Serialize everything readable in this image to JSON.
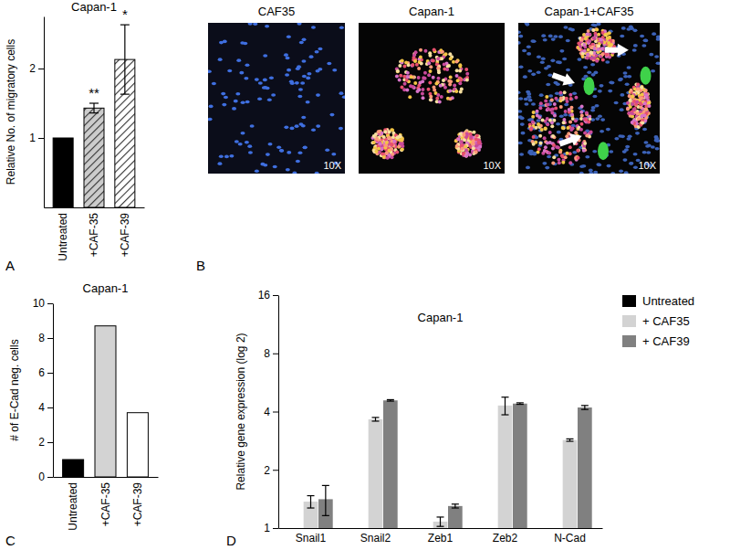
{
  "chart_data": [
    {
      "type": "bar",
      "annotation": "A",
      "title": "Capan-1",
      "y_label": "Relative No. of migratory cells",
      "categories": [
        "Untreated",
        "+CAF-35",
        "+CAF-39"
      ],
      "values": [
        1,
        1.43,
        2.13
      ],
      "errors": [
        null,
        0.07,
        0.5
      ],
      "significance": [
        null,
        "**",
        "*"
      ],
      "colors": [
        "#000000",
        "#cccccc",
        "#ffffff"
      ],
      "ylim": [
        0,
        2.75
      ],
      "yticks": [
        1,
        2
      ]
    },
    {
      "type": "bar",
      "annotation": "C",
      "title": "Capan-1",
      "y_label": "# of E-Cad neg. cells",
      "categories": [
        "Untreated",
        "+CAF-35",
        "+CAF-39"
      ],
      "values": [
        1,
        8.7,
        3.7
      ],
      "colors": [
        "#000000",
        "#d3d3d3",
        "#ffffff"
      ],
      "ylim": [
        0,
        10
      ],
      "yticks": [
        0,
        2,
        4,
        6,
        8,
        10
      ]
    },
    {
      "type": "bar",
      "annotation": "D",
      "title": "Capan-1",
      "y_label": "Relative gene expression (log 2)",
      "categories": [
        "Snail1",
        "Snail2",
        "Zeb1",
        "Zeb2",
        "N-Cad"
      ],
      "series": [
        {
          "name": "Untreated",
          "color": "#000000",
          "values": [
            1,
            1,
            1,
            1,
            1
          ]
        },
        {
          "name": "+ CAF35",
          "color": "#d3d3d3",
          "values": [
            1.37,
            3.65,
            1.08,
            4.3,
            2.85
          ],
          "errors": [
            0.1,
            0.08,
            0.06,
            0.45,
            0.04
          ]
        },
        {
          "name": "+ CAF39",
          "color": "#808080",
          "values": [
            1.41,
            4.57,
            1.3,
            4.4,
            4.2
          ],
          "errors": [
            0.25,
            0.04,
            0.03,
            0.04,
            0.1
          ]
        }
      ],
      "log": "y",
      "ylim": [
        1,
        16
      ],
      "yticks": [
        1,
        2,
        4,
        8,
        16
      ],
      "legend": "right"
    }
  ],
  "panel_b": {
    "annotation": "B",
    "images": [
      {
        "title": "CAF35",
        "magnification": "10X"
      },
      {
        "title": "Capan-1",
        "magnification": "10X"
      },
      {
        "title": "Capan-1+CAF35",
        "magnification": "10X"
      }
    ]
  }
}
